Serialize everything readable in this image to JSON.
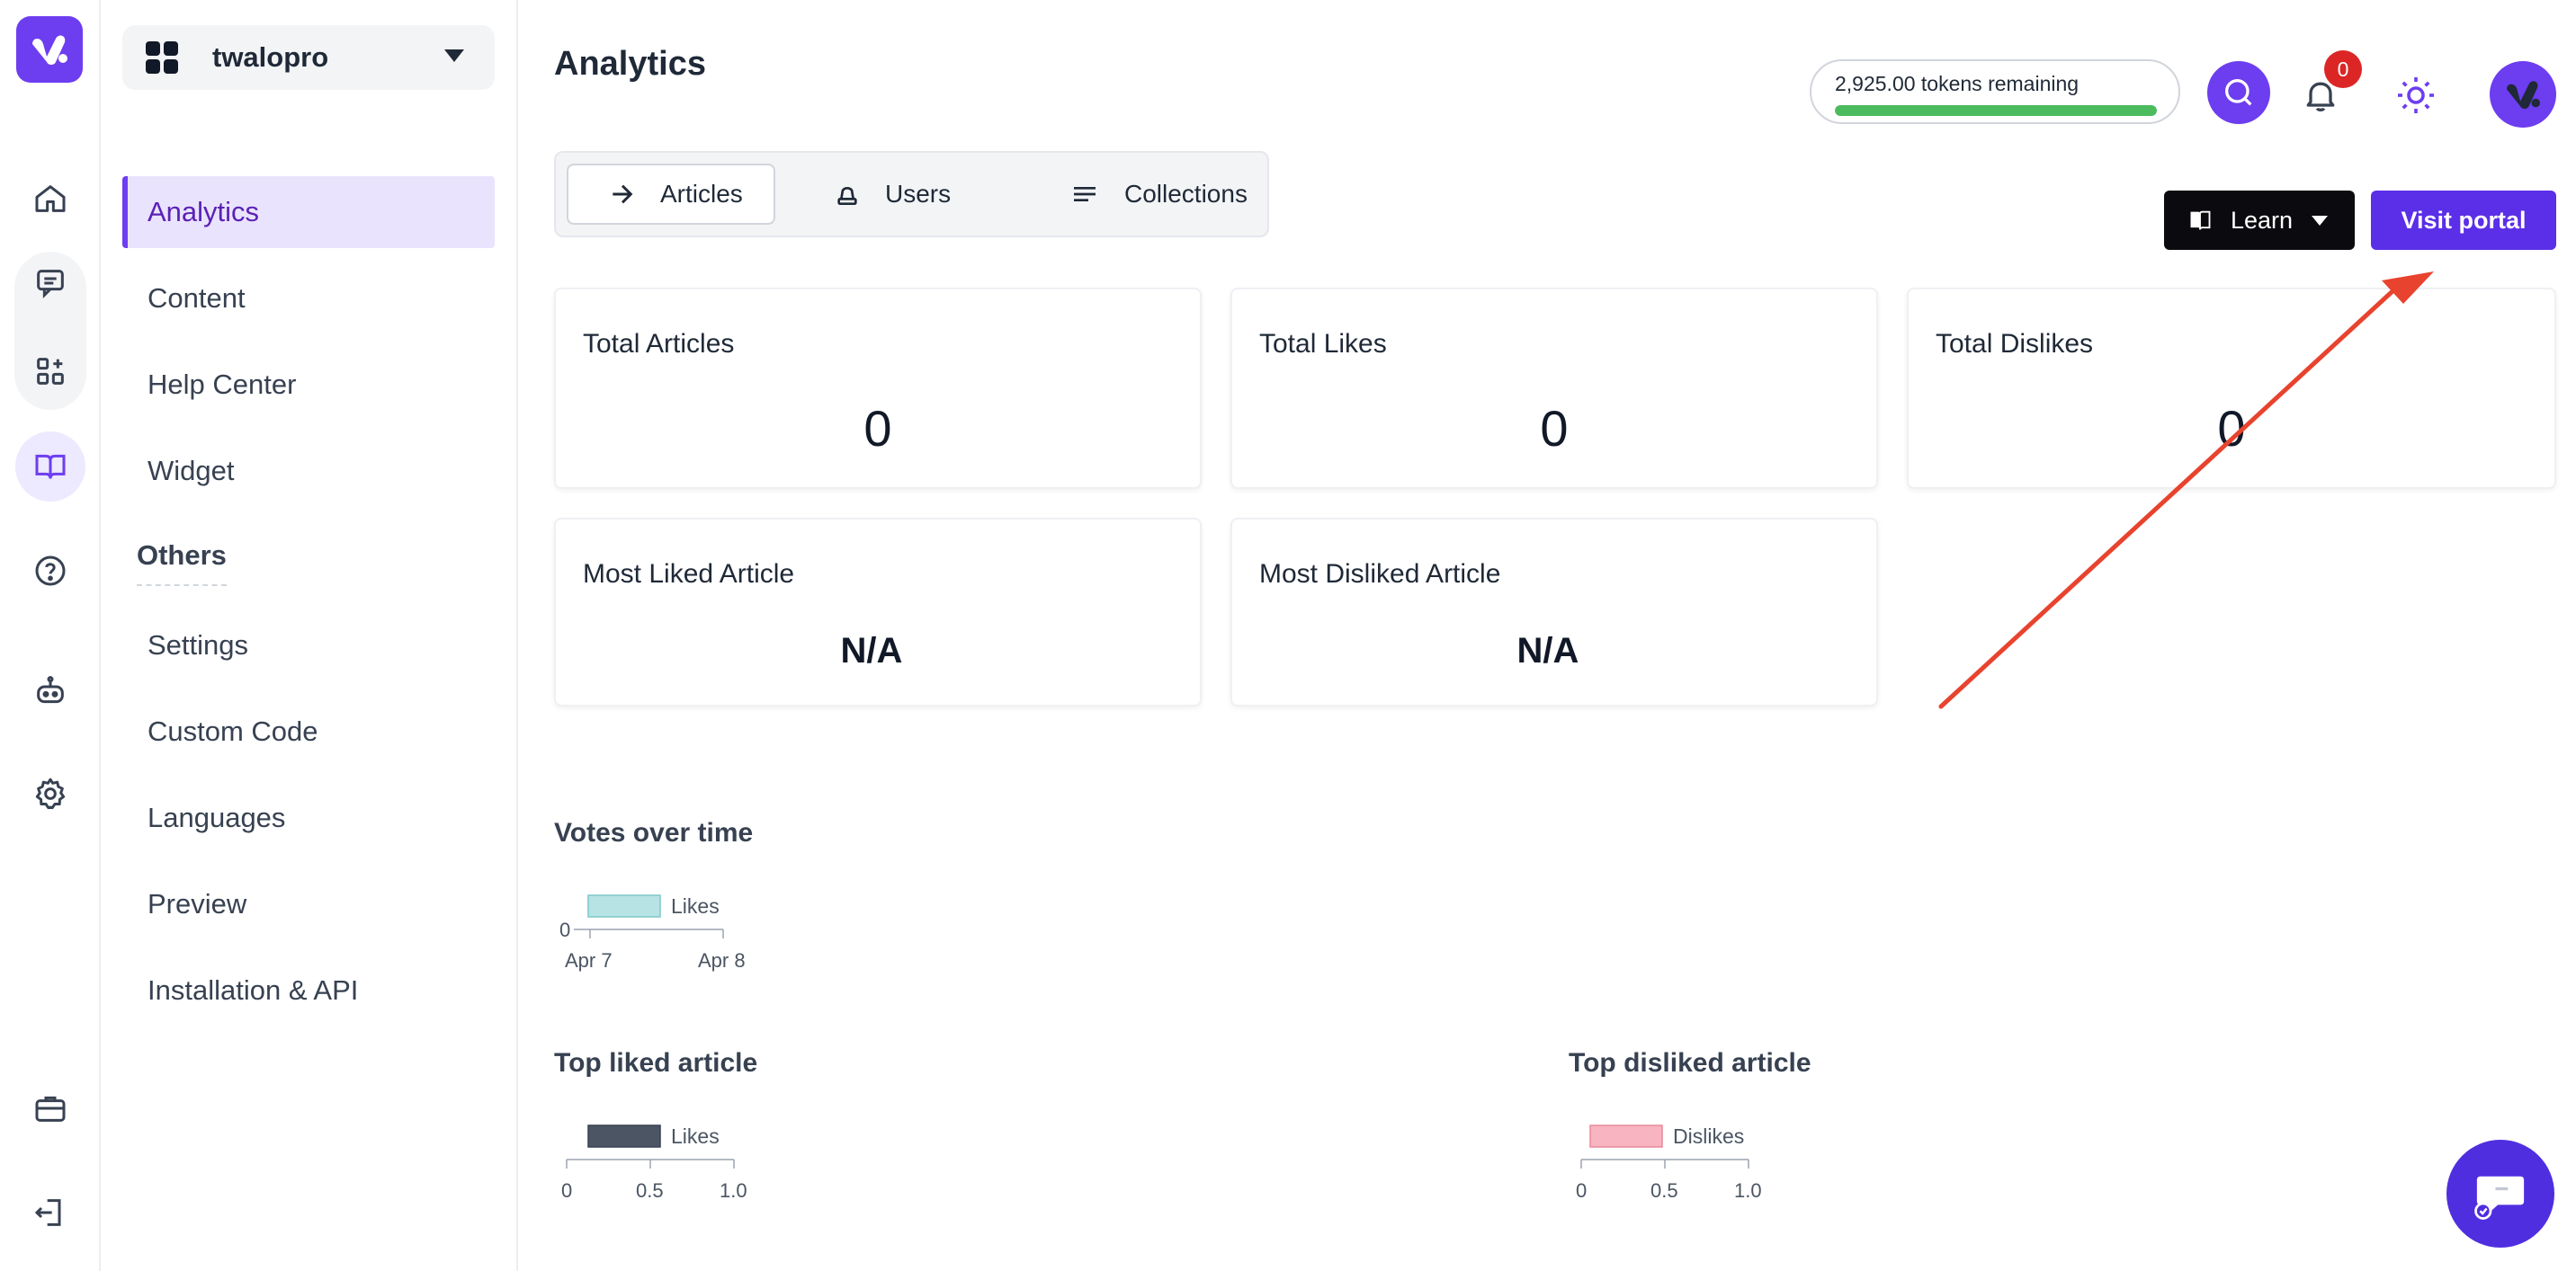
{
  "app": {
    "workspace_name": "twalopro",
    "accent": "#6d3df0"
  },
  "rail": {
    "icons": [
      "logo-icon",
      "home-icon",
      "chat-icon",
      "apps-icon",
      "book-icon",
      "help-icon",
      "robot-icon",
      "gear-icon",
      "briefcase-icon",
      "logout-icon"
    ]
  },
  "nav": {
    "items": [
      {
        "label": "Analytics",
        "active": true
      },
      {
        "label": "Content"
      },
      {
        "label": "Help Center"
      },
      {
        "label": "Widget"
      }
    ],
    "others_heading": "Others",
    "others": [
      {
        "label": "Settings"
      },
      {
        "label": "Custom Code"
      },
      {
        "label": "Languages"
      },
      {
        "label": "Preview"
      },
      {
        "label": "Installation & API"
      }
    ]
  },
  "header": {
    "title": "Analytics",
    "tokens_text": "2,925.00 tokens remaining",
    "tokens_fraction": 1.0,
    "notifications_count": "0"
  },
  "tabs": [
    {
      "label": "Articles",
      "icon": "arrow-right-icon",
      "active": true
    },
    {
      "label": "Users",
      "icon": "user-icon"
    },
    {
      "label": "Collections",
      "icon": "list-icon"
    }
  ],
  "actions": {
    "learn_label": "Learn",
    "portal_label": "Visit portal"
  },
  "stats": [
    {
      "label": "Total Articles",
      "value": "0"
    },
    {
      "label": "Total Likes",
      "value": "0"
    },
    {
      "label": "Total Dislikes",
      "value": "0"
    },
    {
      "label": "Most Liked Article",
      "value": "N/A"
    },
    {
      "label": "Most Disliked Article",
      "value": "N/A"
    }
  ],
  "charts": {
    "votes_title": "Votes over time",
    "top_liked_title": "Top liked article",
    "top_disliked_title": "Top disliked article"
  },
  "chart_data": [
    {
      "type": "line",
      "title": "Votes over time",
      "legend": [
        "Likes"
      ],
      "legend_color": "#b7e3e4",
      "x": [
        "Apr 7",
        "Apr 8"
      ],
      "y_ticks": [
        "0"
      ],
      "series": [
        {
          "name": "Likes",
          "values": [
            0,
            0
          ]
        }
      ]
    },
    {
      "type": "bar",
      "title": "Top liked article",
      "legend": [
        "Likes"
      ],
      "legend_color": "#4b5563",
      "x_ticks": [
        "0",
        "0.5",
        "1.0"
      ],
      "series": [
        {
          "name": "Likes",
          "values": []
        }
      ]
    },
    {
      "type": "bar",
      "title": "Top disliked article",
      "legend": [
        "Dislikes"
      ],
      "legend_color": "#f8b4c0",
      "x_ticks": [
        "0",
        "0.5",
        "1.0"
      ],
      "series": [
        {
          "name": "Dislikes",
          "values": []
        }
      ]
    }
  ]
}
